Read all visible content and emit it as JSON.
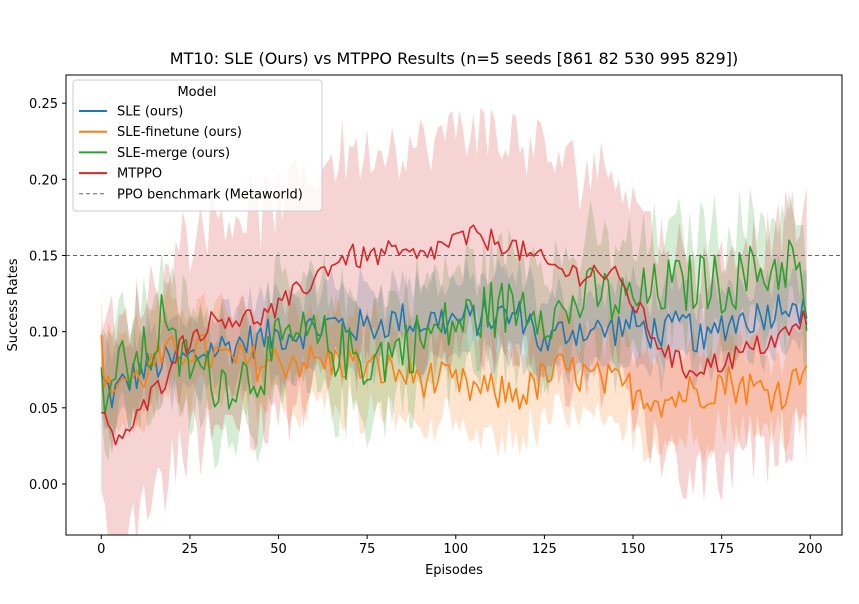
{
  "chart_data": {
    "type": "line",
    "title": "MT10: SLE (Ours) vs MTPPO Results (n=5 seeds [861  82 530 995 829])",
    "xlabel": "Episodes",
    "ylabel": "Success Rates",
    "xlim": [
      -9.95,
      208.95
    ],
    "ylim": [
      -0.0335,
      0.2685
    ],
    "xticks": [
      0,
      25,
      50,
      75,
      100,
      125,
      150,
      175,
      200
    ],
    "yticks": [
      0.0,
      0.05,
      0.1,
      0.15,
      0.2,
      0.25
    ],
    "xtick_labels": [
      "0",
      "25",
      "50",
      "75",
      "100",
      "125",
      "150",
      "175",
      "200"
    ],
    "ytick_labels": [
      "0.00",
      "0.05",
      "0.10",
      "0.15",
      "0.20",
      "0.25"
    ],
    "grid": false,
    "legend": {
      "title": "Model",
      "position": "top-left",
      "entries": [
        "SLE (ours)",
        "SLE-finetune (ours)",
        "SLE-merge (ours)",
        "MTPPO",
        "PPO benchmark (Metaworld)"
      ]
    },
    "reference_line": {
      "name": "PPO benchmark (Metaworld)",
      "y": 0.15,
      "color": "#666666",
      "style": "dashed"
    },
    "series": [
      {
        "name": "SLE (ours)",
        "color": "#1f77b4",
        "anchors": [
          [
            0,
            0.068
          ],
          [
            3,
            0.058
          ],
          [
            6,
            0.065
          ],
          [
            10,
            0.072
          ],
          [
            15,
            0.078
          ],
          [
            20,
            0.08
          ],
          [
            25,
            0.082
          ],
          [
            30,
            0.088
          ],
          [
            35,
            0.09
          ],
          [
            40,
            0.093
          ],
          [
            45,
            0.095
          ],
          [
            50,
            0.098
          ],
          [
            55,
            0.1
          ],
          [
            60,
            0.102
          ],
          [
            65,
            0.105
          ],
          [
            70,
            0.104
          ],
          [
            75,
            0.103
          ],
          [
            80,
            0.106
          ],
          [
            85,
            0.108
          ],
          [
            90,
            0.106
          ],
          [
            95,
            0.108
          ],
          [
            100,
            0.107
          ],
          [
            105,
            0.108
          ],
          [
            110,
            0.11
          ],
          [
            115,
            0.11
          ],
          [
            120,
            0.11
          ],
          [
            125,
            0.09
          ],
          [
            130,
            0.1
          ],
          [
            135,
            0.102
          ],
          [
            140,
            0.1
          ],
          [
            145,
            0.102
          ],
          [
            150,
            0.105
          ],
          [
            155,
            0.1
          ],
          [
            160,
            0.1
          ],
          [
            165,
            0.105
          ],
          [
            170,
            0.09
          ],
          [
            175,
            0.105
          ],
          [
            180,
            0.108
          ],
          [
            185,
            0.11
          ],
          [
            190,
            0.115
          ],
          [
            195,
            0.123
          ],
          [
            199,
            0.108
          ]
        ],
        "noise": 0.012,
        "band_halfwidth": 0.025
      },
      {
        "name": "SLE-finetune (ours)",
        "color": "#ff7f0e",
        "anchors": [
          [
            0,
            0.09
          ],
          [
            2,
            0.06
          ],
          [
            5,
            0.07
          ],
          [
            10,
            0.068
          ],
          [
            15,
            0.08
          ],
          [
            20,
            0.085
          ],
          [
            25,
            0.09
          ],
          [
            30,
            0.085
          ],
          [
            35,
            0.082
          ],
          [
            40,
            0.08
          ],
          [
            45,
            0.08
          ],
          [
            50,
            0.08
          ],
          [
            55,
            0.082
          ],
          [
            60,
            0.08
          ],
          [
            65,
            0.08
          ],
          [
            70,
            0.08
          ],
          [
            75,
            0.075
          ],
          [
            80,
            0.075
          ],
          [
            85,
            0.072
          ],
          [
            90,
            0.07
          ],
          [
            95,
            0.068
          ],
          [
            100,
            0.065
          ],
          [
            105,
            0.062
          ],
          [
            110,
            0.06
          ],
          [
            115,
            0.06
          ],
          [
            120,
            0.06
          ],
          [
            125,
            0.07
          ],
          [
            130,
            0.075
          ],
          [
            135,
            0.072
          ],
          [
            140,
            0.068
          ],
          [
            145,
            0.065
          ],
          [
            150,
            0.062
          ],
          [
            155,
            0.058
          ],
          [
            160,
            0.055
          ],
          [
            165,
            0.06
          ],
          [
            170,
            0.062
          ],
          [
            175,
            0.068
          ],
          [
            180,
            0.065
          ],
          [
            185,
            0.062
          ],
          [
            190,
            0.06
          ],
          [
            195,
            0.065
          ],
          [
            199,
            0.088
          ]
        ],
        "noise": 0.013,
        "band_halfwidth": 0.03
      },
      {
        "name": "SLE-merge (ours)",
        "color": "#2ca02c",
        "anchors": [
          [
            0,
            0.06
          ],
          [
            5,
            0.075
          ],
          [
            10,
            0.08
          ],
          [
            15,
            0.09
          ],
          [
            18,
            0.12
          ],
          [
            20,
            0.085
          ],
          [
            25,
            0.08
          ],
          [
            30,
            0.07
          ],
          [
            35,
            0.068
          ],
          [
            40,
            0.07
          ],
          [
            45,
            0.075
          ],
          [
            50,
            0.09
          ],
          [
            55,
            0.095
          ],
          [
            60,
            0.095
          ],
          [
            65,
            0.09
          ],
          [
            70,
            0.085
          ],
          [
            75,
            0.08
          ],
          [
            80,
            0.085
          ],
          [
            85,
            0.09
          ],
          [
            90,
            0.095
          ],
          [
            95,
            0.1
          ],
          [
            100,
            0.105
          ],
          [
            105,
            0.11
          ],
          [
            110,
            0.115
          ],
          [
            115,
            0.115
          ],
          [
            120,
            0.12
          ],
          [
            125,
            0.115
          ],
          [
            130,
            0.11
          ],
          [
            135,
            0.12
          ],
          [
            140,
            0.125
          ],
          [
            145,
            0.12
          ],
          [
            150,
            0.12
          ],
          [
            155,
            0.125
          ],
          [
            160,
            0.13
          ],
          [
            165,
            0.13
          ],
          [
            170,
            0.135
          ],
          [
            175,
            0.13
          ],
          [
            180,
            0.135
          ],
          [
            185,
            0.14
          ],
          [
            190,
            0.14
          ],
          [
            195,
            0.15
          ],
          [
            199,
            0.11
          ]
        ],
        "noise": 0.02,
        "band_halfwidth": 0.035
      },
      {
        "name": "MTPPO",
        "color": "#d62728",
        "anchors": [
          [
            0,
            0.045
          ],
          [
            3,
            0.03
          ],
          [
            8,
            0.035
          ],
          [
            12,
            0.05
          ],
          [
            15,
            0.06
          ],
          [
            18,
            0.07
          ],
          [
            20,
            0.085
          ],
          [
            25,
            0.095
          ],
          [
            30,
            0.105
          ],
          [
            35,
            0.11
          ],
          [
            40,
            0.108
          ],
          [
            45,
            0.11
          ],
          [
            50,
            0.115
          ],
          [
            55,
            0.125
          ],
          [
            60,
            0.135
          ],
          [
            65,
            0.145
          ],
          [
            70,
            0.15
          ],
          [
            75,
            0.148
          ],
          [
            80,
            0.152
          ],
          [
            85,
            0.15
          ],
          [
            90,
            0.148
          ],
          [
            95,
            0.155
          ],
          [
            100,
            0.16
          ],
          [
            105,
            0.162
          ],
          [
            110,
            0.16
          ],
          [
            115,
            0.158
          ],
          [
            120,
            0.15
          ],
          [
            125,
            0.145
          ],
          [
            130,
            0.14
          ],
          [
            135,
            0.138
          ],
          [
            140,
            0.14
          ],
          [
            145,
            0.135
          ],
          [
            150,
            0.12
          ],
          [
            155,
            0.1
          ],
          [
            160,
            0.085
          ],
          [
            165,
            0.075
          ],
          [
            170,
            0.078
          ],
          [
            175,
            0.08
          ],
          [
            180,
            0.085
          ],
          [
            185,
            0.09
          ],
          [
            190,
            0.095
          ],
          [
            195,
            0.1
          ],
          [
            199,
            0.11
          ]
        ],
        "noise": 0.008,
        "band_halfwidth": 0.07
      }
    ]
  }
}
